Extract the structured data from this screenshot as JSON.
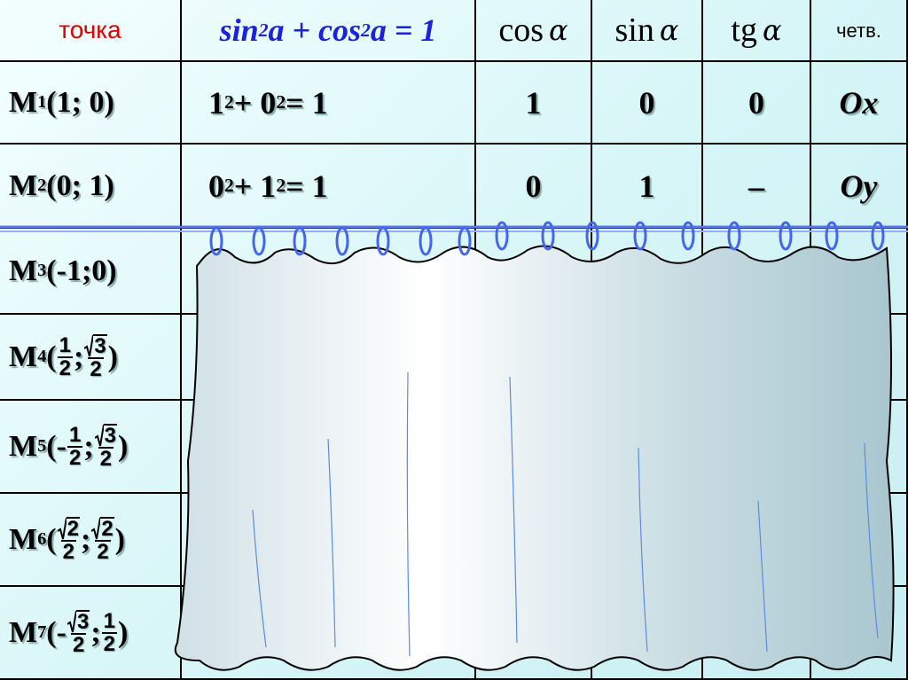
{
  "table": {
    "header": {
      "point": "точка",
      "equation": [
        {
          "text": "sin"
        },
        {
          "text": "2",
          "sup": true
        },
        {
          "text": "a + cos"
        },
        {
          "text": "2",
          "sup": true
        },
        {
          "text": "a = 1"
        }
      ],
      "cos": {
        "fn": "cos",
        "arg": "α"
      },
      "sin": {
        "fn": "sin",
        "arg": "α"
      },
      "tg": {
        "fn": "tg",
        "arg": "α"
      },
      "quarter": "четв."
    },
    "rows": [
      {
        "point": [
          {
            "text": "M"
          },
          {
            "text": "1",
            "sub": true
          },
          {
            "text": "(1; 0)"
          }
        ],
        "equation": [
          {
            "text": "1"
          },
          {
            "text": "2",
            "sup": true
          },
          {
            "text": " + 0"
          },
          {
            "text": "2",
            "sup": true
          },
          {
            "text": " = 1"
          }
        ],
        "cos": "1",
        "sin": "0",
        "tg": "0",
        "quarter": "Ox"
      },
      {
        "point": [
          {
            "text": "M"
          },
          {
            "text": "2",
            "sub": true
          },
          {
            "text": "(0; 1)"
          }
        ],
        "equation": [
          {
            "text": "0"
          },
          {
            "text": "2",
            "sup": true
          },
          {
            "text": " + 1"
          },
          {
            "text": "2",
            "sup": true
          },
          {
            "text": " = 1"
          }
        ],
        "cos": "0",
        "sin": "1",
        "tg": "–",
        "quarter": "Oy"
      },
      {
        "point": [
          {
            "text": "M"
          },
          {
            "text": "3",
            "sub": true
          },
          {
            "text": "(-1;0)"
          }
        ]
      },
      {
        "point": [
          {
            "text": "M"
          },
          {
            "text": "4",
            "sub": true
          },
          {
            "text": "("
          },
          {
            "num": "1",
            "den": "2"
          },
          {
            "text": ";"
          },
          {
            "num": "3",
            "den": "2",
            "root": true
          },
          {
            "text": ")"
          }
        ]
      },
      {
        "point": [
          {
            "text": "M"
          },
          {
            "text": "5",
            "sub": true
          },
          {
            "text": "(-"
          },
          {
            "num": "1",
            "den": "2"
          },
          {
            "text": ";"
          },
          {
            "num": "3",
            "den": "2",
            "root": true
          },
          {
            "text": ")"
          }
        ]
      },
      {
        "point": [
          {
            "text": "M"
          },
          {
            "text": "6",
            "sub": true
          },
          {
            "text": "("
          },
          {
            "num": "2",
            "den": "2",
            "root": true
          },
          {
            "text": ";"
          },
          {
            "num": "2",
            "den": "2",
            "root": true
          },
          {
            "text": ")"
          }
        ]
      },
      {
        "point": [
          {
            "text": "M"
          },
          {
            "text": "7",
            "sub": true
          },
          {
            "text": "(-"
          },
          {
            "num": "3",
            "den": "2",
            "root": true
          },
          {
            "text": ";"
          },
          {
            "num": "1",
            "den": "2"
          },
          {
            "text": ")"
          }
        ]
      }
    ]
  }
}
